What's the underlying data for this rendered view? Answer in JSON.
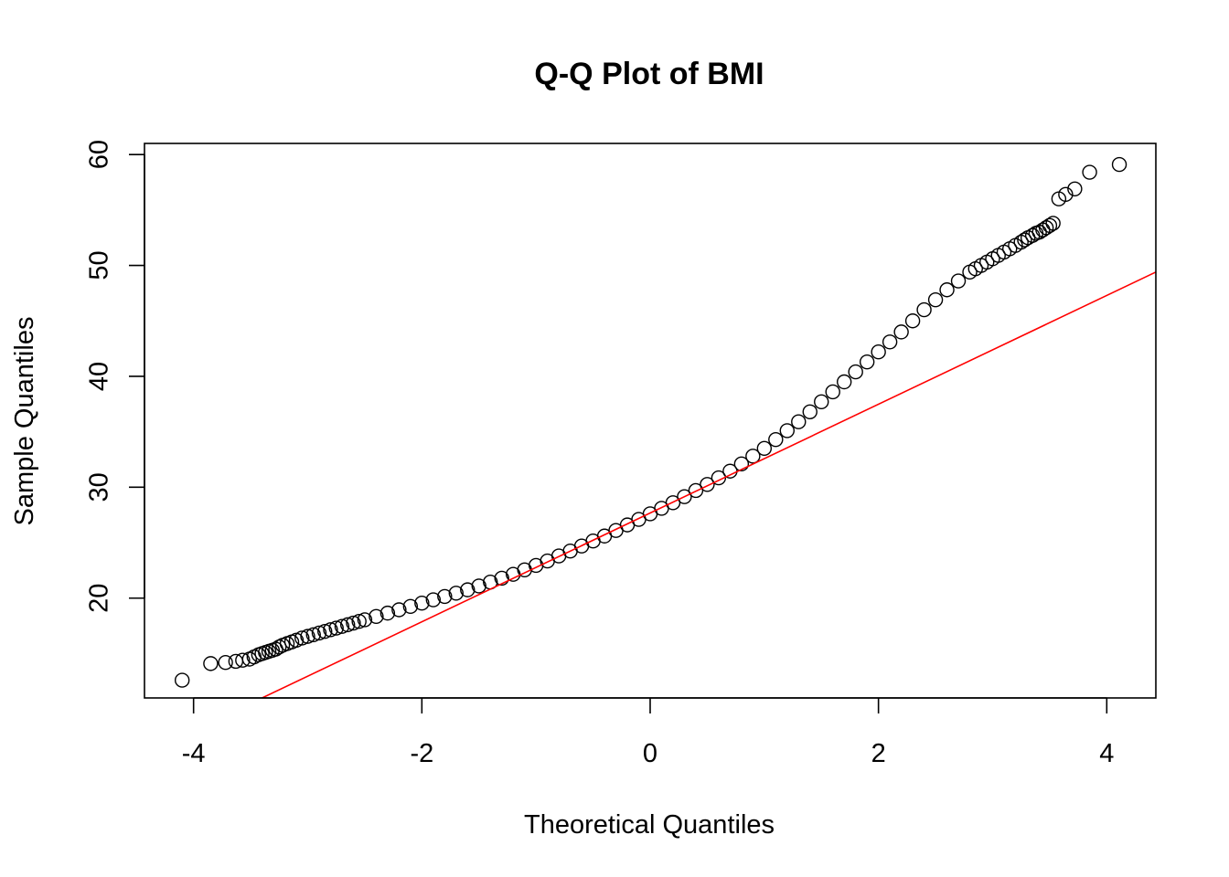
{
  "chart_data": {
    "type": "scatter",
    "title": "Q-Q Plot of BMI",
    "xlabel": "Theoretical Quantiles",
    "ylabel": "Sample Quantiles",
    "xlim": [
      -4.43,
      4.43
    ],
    "ylim": [
      11.0,
      61.0
    ],
    "xticks": [
      -4,
      -2,
      0,
      2,
      4
    ],
    "xtick_labels": [
      "-4",
      "-2",
      "0",
      "2",
      "4"
    ],
    "yticks": [
      20,
      30,
      40,
      50,
      60
    ],
    "ytick_labels": [
      "20",
      "30",
      "40",
      "50",
      "60"
    ],
    "grid": false,
    "colors": {
      "points": "#000000",
      "reference_line": "#ff0000"
    },
    "series": [
      {
        "kind": "points",
        "x": [
          -4.1,
          -3.85,
          -3.72,
          -3.63,
          -3.57,
          -3.51,
          -3.47,
          -3.43,
          -3.4,
          -3.37,
          -3.34,
          -3.31,
          -3.28,
          -3.25,
          -3.22,
          -3.18,
          -3.14,
          -3.1,
          -3.05,
          -3.0,
          -2.95,
          -2.9,
          -2.85,
          -2.8,
          -2.75,
          -2.7,
          -2.65,
          -2.6,
          -2.55,
          -2.5,
          -2.4,
          -2.3,
          -2.2,
          -2.1,
          -2.0,
          -1.9,
          -1.8,
          -1.7,
          -1.6,
          -1.5,
          -1.4,
          -1.3,
          -1.2,
          -1.1,
          -1.0,
          -0.9,
          -0.8,
          -0.7,
          -0.6,
          -0.5,
          -0.4,
          -0.3,
          -0.2,
          -0.1,
          0.0,
          0.1,
          0.2,
          0.3,
          0.4,
          0.5,
          0.6,
          0.7,
          0.8,
          0.9,
          1.0,
          1.1,
          1.2,
          1.3,
          1.4,
          1.5,
          1.6,
          1.7,
          1.8,
          1.9,
          2.0,
          2.1,
          2.2,
          2.3,
          2.4,
          2.5,
          2.6,
          2.7,
          2.8,
          2.85,
          2.9,
          2.95,
          3.0,
          3.05,
          3.1,
          3.15,
          3.2,
          3.25,
          3.28,
          3.31,
          3.35,
          3.38,
          3.41,
          3.44,
          3.47,
          3.5,
          3.53,
          3.58,
          3.64,
          3.72,
          3.85,
          4.11
        ],
        "y": [
          12.6,
          14.1,
          14.2,
          14.3,
          14.4,
          14.5,
          14.7,
          14.9,
          15.0,
          15.1,
          15.2,
          15.3,
          15.4,
          15.6,
          15.75,
          15.9,
          16.05,
          16.2,
          16.4,
          16.55,
          16.7,
          16.85,
          17.0,
          17.15,
          17.3,
          17.45,
          17.6,
          17.75,
          17.9,
          18.05,
          18.35,
          18.65,
          18.95,
          19.25,
          19.55,
          19.85,
          20.15,
          20.45,
          20.75,
          21.1,
          21.45,
          21.8,
          22.15,
          22.55,
          22.95,
          23.35,
          23.8,
          24.25,
          24.7,
          25.15,
          25.6,
          26.1,
          26.6,
          27.1,
          27.6,
          28.1,
          28.6,
          29.15,
          29.7,
          30.25,
          30.85,
          31.45,
          32.1,
          32.8,
          33.5,
          34.3,
          35.1,
          35.9,
          36.8,
          37.7,
          38.6,
          39.5,
          40.4,
          41.3,
          42.2,
          43.1,
          44.0,
          45.0,
          46.0,
          46.9,
          47.8,
          48.6,
          49.4,
          49.7,
          50.0,
          50.3,
          50.6,
          50.9,
          51.2,
          51.5,
          51.8,
          52.1,
          52.3,
          52.5,
          52.7,
          52.9,
          53.0,
          53.2,
          53.4,
          53.6,
          53.8,
          56.0,
          56.4,
          56.9,
          58.4,
          59.1
        ]
      },
      {
        "kind": "reference_line",
        "x": [
          -3.4,
          4.43
        ],
        "y": [
          11.0,
          49.4
        ]
      }
    ]
  }
}
